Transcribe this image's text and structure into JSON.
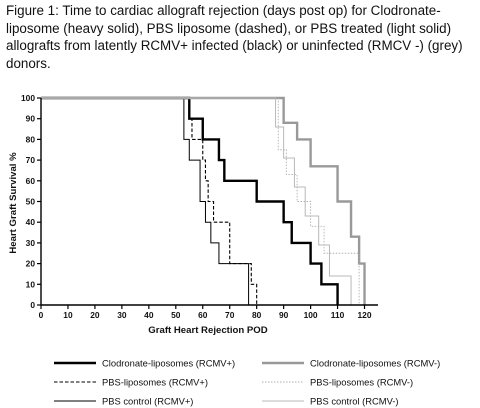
{
  "caption": "Figure 1: Time to cardiac allograft rejection (days post op) for Clodronate-liposome (heavy solid), PBS liposome (dashed), or PBS treated (light solid) allografts from latently RCMV+ infected (black) or uninfected (RMCV -) (grey) donors.",
  "chart_data": {
    "type": "line",
    "step": true,
    "xlabel": "Graft Heart Rejection POD",
    "ylabel": "Heart Graft Survival %",
    "xlim": [
      0,
      125
    ],
    "ylim": [
      0,
      100
    ],
    "xticks": [
      0,
      10,
      20,
      30,
      40,
      50,
      60,
      70,
      80,
      90,
      100,
      110,
      120
    ],
    "yticks": [
      0,
      10,
      20,
      30,
      40,
      50,
      60,
      70,
      80,
      90,
      100
    ],
    "grid": false,
    "legend_position": "bottom",
    "series": [
      {
        "name": "Clodronate-liposomes (RCMV+)",
        "color": "#000000",
        "style": "heavy-solid",
        "x": [
          0,
          55,
          60,
          66,
          68,
          80,
          90,
          93,
          100,
          104,
          110
        ],
        "y": [
          100,
          90,
          80,
          70,
          60,
          50,
          40,
          30,
          20,
          10,
          0
        ]
      },
      {
        "name": "PBS-liposomes (RCMV+)",
        "color": "#000000",
        "style": "dashed",
        "x": [
          0,
          55,
          56,
          60,
          61,
          62,
          64,
          70,
          78,
          80
        ],
        "y": [
          100,
          90,
          80,
          70,
          60,
          50,
          40,
          20,
          10,
          0
        ]
      },
      {
        "name": "PBS control (RCMV+)",
        "color": "#000000",
        "style": "thin-solid",
        "x": [
          0,
          53,
          55,
          59,
          61,
          63,
          66,
          77
        ],
        "y": [
          100,
          80,
          70,
          50,
          40,
          30,
          20,
          0
        ]
      },
      {
        "name": "Clodronate-liposomes (RCMV-)",
        "color": "#999999",
        "style": "heavy-solid",
        "x": [
          0,
          90,
          95,
          100,
          110,
          115,
          118,
          120
        ],
        "y": [
          100,
          88,
          80,
          67,
          50,
          33,
          20,
          0
        ]
      },
      {
        "name": "PBS-liposomes (RCMV-)",
        "color": "#b0b0b0",
        "style": "dotted",
        "x": [
          0,
          88,
          91,
          95,
          100,
          105,
          118
        ],
        "y": [
          100,
          75,
          63,
          50,
          38,
          25,
          0
        ]
      },
      {
        "name": "PBS control (RCMV-)",
        "color": "#b8b8b8",
        "style": "thin-solid",
        "x": [
          0,
          87,
          90,
          94,
          98,
          103,
          107,
          115
        ],
        "y": [
          100,
          86,
          71,
          57,
          43,
          29,
          14,
          0
        ]
      }
    ]
  }
}
